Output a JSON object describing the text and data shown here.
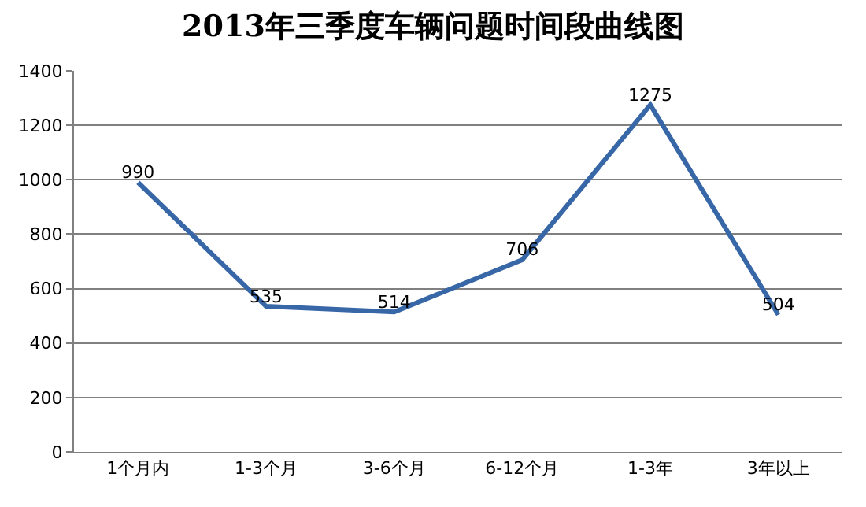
{
  "chart_data": {
    "type": "line",
    "title": "2013年三季度车辆问题时间段曲线图",
    "categories": [
      "1个月内",
      "1-3个月",
      "3-6个月",
      "6-12个月",
      "1-3年",
      "3年以上"
    ],
    "series": [
      {
        "color": "#3867a8",
        "values": [
          990,
          535,
          514,
          706,
          1275,
          504
        ]
      }
    ],
    "ylim": [
      0,
      1400
    ],
    "yticks": [
      0,
      200,
      400,
      600,
      800,
      1000,
      1200,
      1400
    ],
    "grid": "y",
    "legend": false,
    "data_labels": true,
    "marker": "none",
    "line_style": "solid"
  }
}
